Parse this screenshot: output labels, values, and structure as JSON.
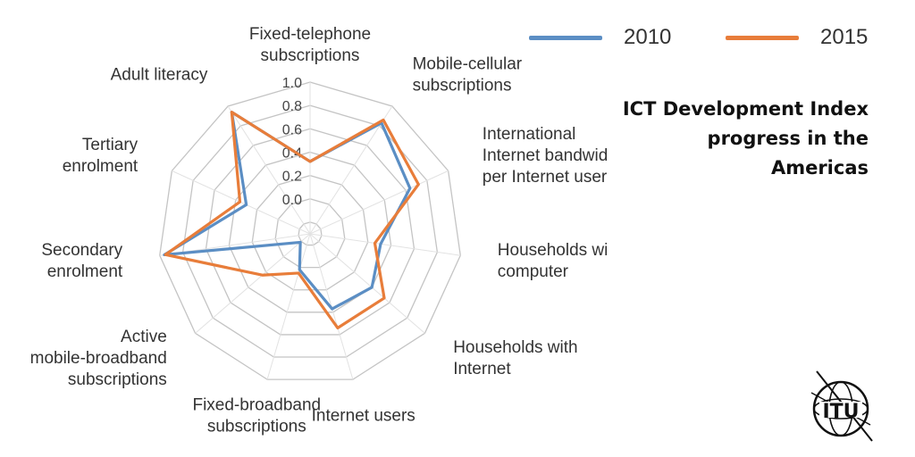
{
  "chart_data": {
    "type": "radar",
    "title": "ICT Development Index progress in the Americas",
    "categories": [
      "Fixed-telephone subscriptions",
      "Mobile-cellular subscriptions",
      "International Internet bandwidth per Internet user",
      "Households with computer",
      "Households with Internet",
      "Internet users",
      "Fixed-broadband subscriptions",
      "Active mobile-broadband subscriptions",
      "Secondary enrolment",
      "Tertiary enrolment",
      "Adult literacy"
    ],
    "category_lines": [
      [
        "Fixed-telephone",
        "subscriptions"
      ],
      [
        "Mobile-cellular",
        "subscriptions"
      ],
      [
        "International",
        "Internet bandwidth",
        "per Internet user"
      ],
      [
        "Households with",
        "computer"
      ],
      [
        "Households with",
        "Internet"
      ],
      [
        "Internet users"
      ],
      [
        "Fixed-broadband",
        "subscriptions"
      ],
      [
        "Active",
        "mobile-broadband",
        "subscriptions"
      ],
      [
        "Secondary",
        "enrolment"
      ],
      [
        "Tertiary",
        "enrolment"
      ],
      [
        "Adult literacy"
      ]
    ],
    "ticks": [
      "0.0",
      "0.2",
      "0.4",
      "0.6",
      "0.8",
      "1.0"
    ],
    "rlim": [
      -0.3,
      1.0
    ],
    "series": [
      {
        "name": "2010",
        "color": "#5b8ec4",
        "values": [
          0.32,
          0.83,
          0.64,
          0.31,
          0.4,
          0.37,
          0.02,
          -0.19,
          0.96,
          0.3,
          0.94
        ]
      },
      {
        "name": "2015",
        "color": "#e87d3a",
        "values": [
          0.32,
          0.86,
          0.72,
          0.26,
          0.54,
          0.54,
          0.05,
          0.24,
          0.95,
          0.36,
          0.94
        ]
      }
    ]
  },
  "legend": [
    {
      "label": "2010",
      "color": "#5b8ec4"
    },
    {
      "label": "2015",
      "color": "#e87d3a"
    }
  ],
  "title_lines": [
    "ICT Development Index",
    "progress in the",
    "Americas"
  ],
  "logo": {
    "text": "ITU",
    "icon": "itu-globe-logo"
  }
}
